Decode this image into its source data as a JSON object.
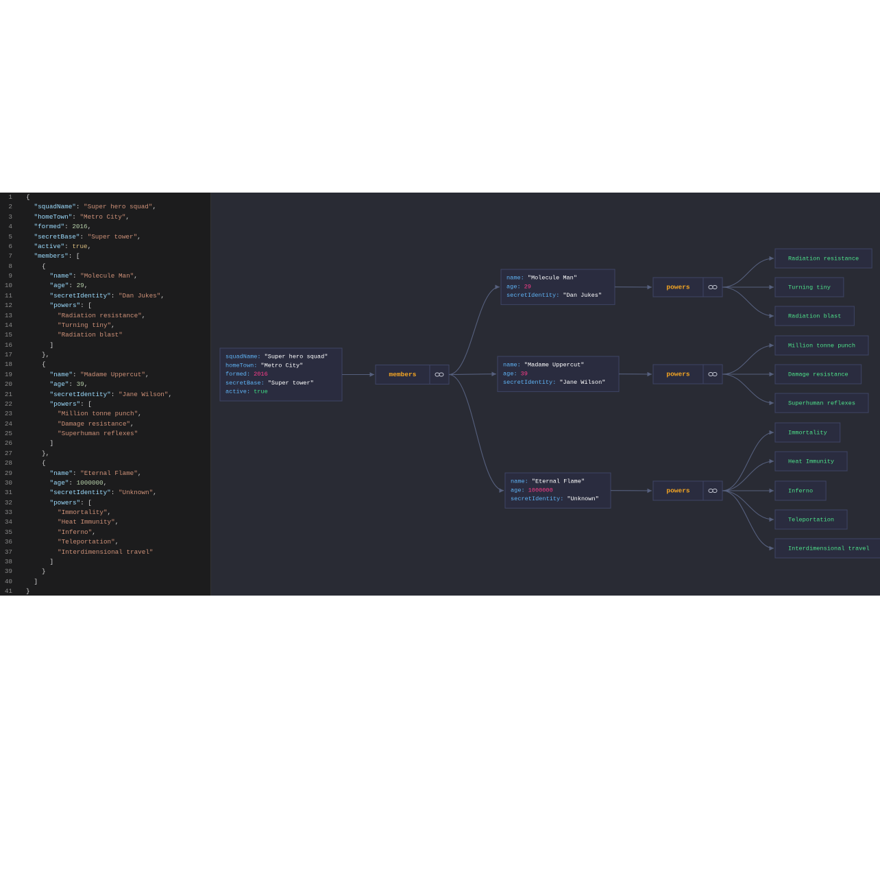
{
  "editor": {
    "lines": [
      {
        "number": 1,
        "text": "{"
      },
      {
        "number": 2,
        "text": "\"squadName\": \"Super hero squad\","
      },
      {
        "number": 3,
        "text": "\"homeTown\": \"Metro City\","
      },
      {
        "number": 4,
        "text": "\"formed\": 2016,"
      },
      {
        "number": 5,
        "text": "\"secretBase\": \"Super tower\","
      },
      {
        "number": 6,
        "text": "\"active\": true,"
      },
      {
        "number": 7,
        "text": "\"members\": ["
      },
      {
        "number": 8,
        "text": "{"
      },
      {
        "number": 9,
        "text": "\"name\": \"Molecule Man\","
      },
      {
        "number": 10,
        "text": "\"age\": 29,"
      },
      {
        "number": 11,
        "text": "\"secretIdentity\": \"Dan Jukes\","
      },
      {
        "number": 12,
        "text": "\"powers\": ["
      },
      {
        "number": 13,
        "text": "\"Radiation resistance\","
      },
      {
        "number": 14,
        "text": "\"Turning tiny\","
      },
      {
        "number": 15,
        "text": "\"Radiation blast\""
      },
      {
        "number": 16,
        "text": "]"
      },
      {
        "number": 17,
        "text": "},"
      },
      {
        "number": 18,
        "text": "{"
      },
      {
        "number": 19,
        "text": "\"name\": \"Madame Uppercut\","
      },
      {
        "number": 20,
        "text": "\"age\": 39,"
      },
      {
        "number": 21,
        "text": "\"secretIdentity\": \"Jane Wilson\","
      },
      {
        "number": 22,
        "text": "\"powers\": ["
      },
      {
        "number": 23,
        "text": "\"Million tonne punch\","
      },
      {
        "number": 24,
        "text": "\"Damage resistance\","
      },
      {
        "number": 25,
        "text": "\"Superhuman reflexes\""
      },
      {
        "number": 26,
        "text": "]"
      },
      {
        "number": 27,
        "text": "},"
      },
      {
        "number": 28,
        "text": "{"
      },
      {
        "number": 29,
        "text": "\"name\": \"Eternal Flame\","
      },
      {
        "number": 30,
        "text": "\"age\": 1000000,"
      },
      {
        "number": 31,
        "text": "\"secretIdentity\": \"Unknown\","
      },
      {
        "number": 32,
        "text": "\"powers\": ["
      },
      {
        "number": 33,
        "text": "\"Immortality\","
      },
      {
        "number": 34,
        "text": "\"Heat Immunity\","
      },
      {
        "number": 35,
        "text": "\"Inferno\","
      },
      {
        "number": 36,
        "text": "\"Teleportation\","
      },
      {
        "number": 37,
        "text": "\"Interdimensional travel\""
      },
      {
        "number": 38,
        "text": "]"
      },
      {
        "number": 39,
        "text": "}"
      },
      {
        "number": 40,
        "text": "]"
      },
      {
        "number": 41,
        "text": "}"
      }
    ]
  },
  "graph": {
    "root": {
      "rows": [
        {
          "key": "squadName:",
          "value": "\"Super hero squad\""
        },
        {
          "key": "homeTown:",
          "value": "\"Metro City\""
        },
        {
          "key": "formed:",
          "value": 2016
        },
        {
          "key": "secretBase:",
          "value": "\"Super tower\""
        },
        {
          "key": "active:",
          "value": true
        }
      ]
    },
    "members_label": "members",
    "members": [
      {
        "rows": [
          {
            "key": "name:",
            "value": "\"Molecule Man\""
          },
          {
            "key": "age:",
            "value": 29
          },
          {
            "key": "secretIdentity:",
            "value": "\"Dan Jukes\""
          }
        ],
        "powers_label": "powers",
        "powers": [
          "Radiation resistance",
          "Turning tiny",
          "Radiation blast"
        ]
      },
      {
        "rows": [
          {
            "key": "name:",
            "value": "\"Madame Uppercut\""
          },
          {
            "key": "age:",
            "value": 39
          },
          {
            "key": "secretIdentity:",
            "value": "\"Jane Wilson\""
          }
        ],
        "powers_label": "powers",
        "powers": [
          "Million tonne punch",
          "Damage resistance",
          "Superhuman reflexes"
        ]
      },
      {
        "rows": [
          {
            "key": "name:",
            "value": "\"Eternal Flame\""
          },
          {
            "key": "age:",
            "value": 1000000
          },
          {
            "key": "secretIdentity:",
            "value": "\"Unknown\""
          }
        ],
        "powers_label": "powers",
        "powers": [
          "Immortality",
          "Heat Immunity",
          "Inferno",
          "Teleportation",
          "Interdimensional travel"
        ]
      }
    ]
  }
}
